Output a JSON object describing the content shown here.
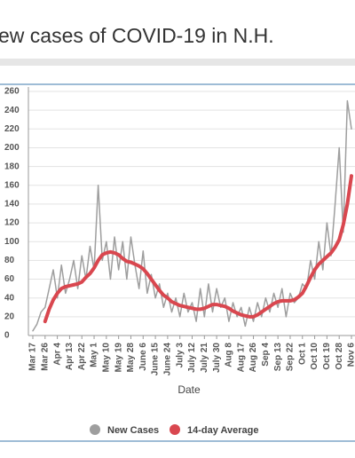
{
  "chart_data": {
    "type": "line",
    "title": "ew cases of COVID-19 in N.H.",
    "x_label": "Date",
    "categories": [
      "Mar 17",
      null,
      null,
      "Mar 26",
      null,
      null,
      "Apr 4",
      null,
      null,
      "Apr 13",
      null,
      null,
      "Apr 22",
      null,
      null,
      "May 1",
      null,
      null,
      "May 10",
      null,
      null,
      "May 19",
      null,
      null,
      "May 28",
      null,
      null,
      "June 6",
      null,
      null,
      "June 15",
      null,
      null,
      "June 24",
      null,
      null,
      "July 3",
      null,
      null,
      "July 12",
      null,
      null,
      "July 21",
      null,
      null,
      "July 30",
      null,
      null,
      "Aug 8",
      null,
      null,
      "Aug 17",
      null,
      null,
      "Aug 26",
      null,
      null,
      "Sep 4",
      null,
      null,
      "Sep 13",
      null,
      null,
      "Sep 22",
      null,
      null,
      "Oct 1",
      null,
      null,
      "Oct 10",
      null,
      null,
      "Oct 19",
      null,
      null,
      "Oct 28",
      null,
      null,
      "Nov 6"
    ],
    "series": [
      {
        "name": "New Cases",
        "color": "#9e9e9e",
        "values": [
          5,
          12,
          25,
          30,
          50,
          70,
          40,
          75,
          45,
          60,
          80,
          50,
          85,
          60,
          95,
          70,
          160,
          80,
          100,
          60,
          105,
          70,
          100,
          60,
          105,
          75,
          50,
          90,
          45,
          65,
          40,
          55,
          30,
          45,
          25,
          40,
          20,
          45,
          25,
          35,
          15,
          50,
          20,
          55,
          25,
          50,
          30,
          40,
          15,
          35,
          20,
          30,
          10,
          30,
          15,
          35,
          20,
          40,
          25,
          45,
          30,
          50,
          20,
          45,
          35,
          40,
          55,
          50,
          80,
          60,
          100,
          70,
          120,
          85,
          140,
          200,
          110,
          250,
          220
        ]
      },
      {
        "name": "14-day Average",
        "color": "#d9474f",
        "values": [
          null,
          null,
          null,
          15,
          28,
          38,
          45,
          50,
          52,
          53,
          54,
          55,
          57,
          62,
          66,
          72,
          80,
          86,
          88,
          89,
          88,
          86,
          82,
          79,
          78,
          76,
          74,
          71,
          66,
          60,
          54,
          48,
          43,
          40,
          36,
          34,
          32,
          31,
          30,
          29,
          28,
          28,
          29,
          31,
          33,
          33,
          32,
          31,
          29,
          26,
          24,
          22,
          21,
          20,
          20,
          22,
          25,
          28,
          31,
          34,
          36,
          37,
          37,
          37,
          38,
          41,
          45,
          53,
          62,
          70,
          76,
          80,
          84,
          88,
          94,
          102,
          118,
          140,
          170
        ]
      }
    ],
    "ylim": [
      0,
      260
    ],
    "yticks": [
      0,
      20,
      40,
      60,
      80,
      100,
      120,
      140,
      160,
      180,
      200,
      220,
      240,
      260
    ],
    "grid": true
  }
}
